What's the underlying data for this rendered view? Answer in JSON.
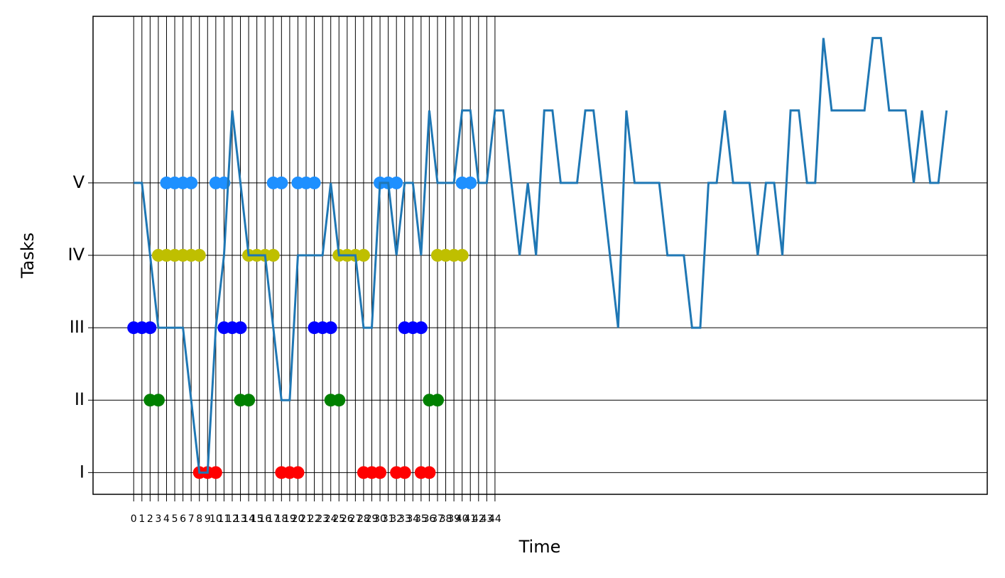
{
  "chart_data": {
    "type": "line",
    "xlabel": "Time",
    "ylabel": "Tasks",
    "xlim": [
      -4.95,
      103.95
    ],
    "ylim": [
      0.7,
      7.3
    ],
    "xticks": [
      0,
      1,
      2,
      3,
      4,
      5,
      6,
      7,
      8,
      9,
      10,
      11,
      12,
      13,
      14,
      15,
      16,
      17,
      18,
      19,
      20,
      21,
      22,
      23,
      24,
      25,
      26,
      27,
      28,
      29,
      30,
      31,
      32,
      33,
      34,
      35,
      36,
      37,
      38,
      39,
      40,
      41,
      42,
      43,
      44
    ],
    "yticks": [
      {
        "value": 1,
        "label": "I"
      },
      {
        "value": 2,
        "label": "II"
      },
      {
        "value": 3,
        "label": "III"
      },
      {
        "value": 4,
        "label": "IV"
      },
      {
        "value": 5,
        "label": "V"
      }
    ],
    "grid": true,
    "series": [
      {
        "color": "#ff0000",
        "style": "dots",
        "x": [
          8,
          9,
          10,
          18,
          19,
          20,
          28,
          29,
          30,
          32,
          33,
          35,
          36
        ],
        "values": [
          1,
          1,
          1,
          1,
          1,
          1,
          1,
          1,
          1,
          1,
          1,
          1,
          1
        ]
      },
      {
        "color": "#008000",
        "style": "dots",
        "x": [
          2,
          3,
          13,
          14,
          24,
          25,
          36,
          37
        ],
        "values": [
          2,
          2,
          2,
          2,
          2,
          2,
          2,
          2
        ]
      },
      {
        "color": "#0000ff",
        "style": "dots",
        "x": [
          0,
          1,
          2,
          11,
          12,
          13,
          22,
          23,
          24,
          33,
          34,
          35
        ],
        "values": [
          3,
          3,
          3,
          3,
          3,
          3,
          3,
          3,
          3,
          3,
          3,
          3
        ]
      },
      {
        "color": "#bfbf00",
        "style": "dots",
        "x": [
          3,
          4,
          5,
          6,
          7,
          8,
          14,
          15,
          16,
          17,
          25,
          26,
          27,
          28,
          37,
          38,
          39,
          40
        ],
        "values": [
          4,
          4,
          4,
          4,
          4,
          4,
          4,
          4,
          4,
          4,
          4,
          4,
          4,
          4,
          4,
          4,
          4,
          4
        ]
      },
      {
        "color": "#1e90ff",
        "style": "dots",
        "x": [
          4,
          5,
          6,
          7,
          10,
          11,
          17,
          18,
          20,
          21,
          22,
          30,
          31,
          32,
          40,
          41
        ],
        "values": [
          5,
          5,
          5,
          5,
          5,
          5,
          5,
          5,
          5,
          5,
          5,
          5,
          5,
          5,
          5,
          5
        ]
      },
      {
        "color": "#1f77b4",
        "style": "line",
        "x": [
          0,
          1,
          2,
          3,
          4,
          5,
          6,
          7,
          8,
          9,
          10,
          11,
          12,
          13,
          14,
          15,
          16,
          17,
          18,
          19,
          20,
          21,
          22,
          23,
          24,
          25,
          26,
          27,
          28,
          29,
          30,
          31,
          32,
          33,
          34,
          35,
          36,
          37,
          38,
          39,
          40,
          41,
          42,
          43,
          44,
          45,
          46,
          47,
          48,
          49,
          50,
          51,
          52,
          53,
          54,
          55,
          56,
          57,
          58,
          59,
          60,
          61,
          62,
          63,
          64,
          65,
          66,
          67,
          68,
          69,
          70,
          71,
          72,
          73,
          74,
          75,
          76,
          77,
          78,
          79,
          80,
          81,
          82,
          83,
          84,
          85,
          86,
          87,
          88,
          89,
          90,
          91,
          92,
          93,
          94,
          95,
          96,
          97,
          98,
          99
        ],
        "values": [
          5,
          5,
          4,
          3,
          3,
          3,
          3,
          2,
          1,
          1,
          3,
          4,
          6,
          5,
          4,
          4,
          4,
          3,
          2,
          2,
          4,
          4,
          4,
          4,
          5,
          4,
          4,
          4,
          3,
          3,
          5,
          5,
          4,
          5,
          5,
          4,
          6,
          5,
          5,
          5,
          6,
          6,
          5,
          5,
          6,
          6,
          5,
          4,
          5,
          4,
          6,
          6,
          5,
          5,
          5,
          6,
          6,
          5,
          4,
          3,
          6,
          5,
          5,
          5,
          5,
          4,
          4,
          4,
          3,
          3,
          5,
          5,
          6,
          5,
          5,
          5,
          4,
          5,
          5,
          4,
          6,
          6,
          5,
          5,
          7,
          6,
          6,
          6,
          6,
          6,
          7,
          7,
          6,
          6,
          6,
          5,
          6,
          5,
          5,
          6
        ]
      }
    ]
  }
}
